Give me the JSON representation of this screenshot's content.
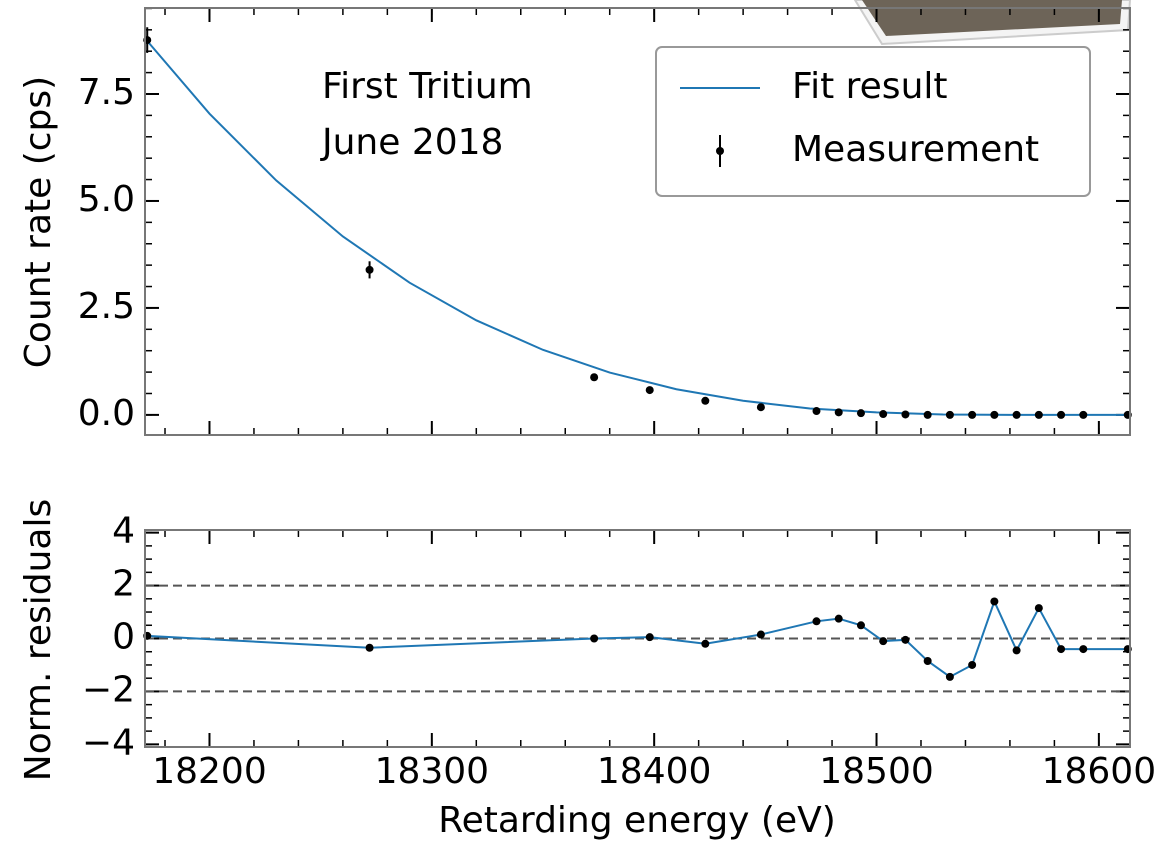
{
  "chart_data": [
    {
      "type": "line",
      "y_label": "Count rate (cps)",
      "annotations": [
        "First Tritium",
        "June 2018"
      ],
      "legend": "upper right",
      "xlim": [
        18171,
        18614
      ],
      "ylim": [
        -0.47,
        9.51
      ],
      "yticks": [
        {
          "value": 0,
          "label": "0.0"
        },
        2.5,
        {
          "value": 5,
          "label": "5.0"
        },
        7.5
      ],
      "series": [
        {
          "name": "Fit result",
          "color": "#1f77b4",
          "kind": "line",
          "x": [
            18171,
            18200,
            18230,
            18260,
            18290,
            18320,
            18350,
            18380,
            18410,
            18440,
            18470,
            18500,
            18530,
            18560,
            18614
          ],
          "values": [
            8.8,
            7.04,
            5.48,
            4.17,
            3.09,
            2.21,
            1.52,
            0.99,
            0.6,
            0.33,
            0.15,
            0.06,
            0.01,
            0,
            0
          ]
        },
        {
          "name": "Measurement",
          "color": "#000000",
          "kind": "errorbar",
          "x": [
            18172,
            18272,
            18373,
            18398,
            18423,
            18448,
            18473,
            18483,
            18493,
            18503,
            18513,
            18523,
            18533,
            18543,
            18553,
            18563,
            18573,
            18583,
            18593,
            18613
          ],
          "values": [
            8.76,
            3.39,
            0.88,
            0.58,
            0.33,
            0.18,
            0.09,
            0.06,
            0.04,
            0.02,
            0.01,
            0,
            0,
            0,
            0,
            0,
            0,
            0,
            0,
            0
          ],
          "errors": [
            0.3,
            0.2,
            0.06,
            0.05,
            0.04,
            0.04,
            0.03,
            0.03,
            0.03,
            0.03,
            0.03,
            0.03,
            0.03,
            0.03,
            0.03,
            0.03,
            0.03,
            0.03,
            0.03,
            0.03
          ]
        }
      ]
    },
    {
      "type": "line",
      "x_label": "Retarding energy (eV)",
      "y_label": "Norm. residuals",
      "xlim": [
        18171,
        18614
      ],
      "ylim": [
        -4.1,
        4.1
      ],
      "xticks": [
        18200,
        18300,
        18400,
        18500,
        18600
      ],
      "yticks": [
        {
          "value": -4,
          "label": "−4"
        },
        {
          "value": -2,
          "label": "−2"
        },
        0,
        2,
        4
      ],
      "hlines": [
        2,
        0,
        -2
      ],
      "series": [
        {
          "color": "#1f77b4",
          "x": [
            18172,
            18272,
            18373,
            18398,
            18423,
            18448,
            18473,
            18483,
            18493,
            18503,
            18513,
            18523,
            18533,
            18543,
            18553,
            18563,
            18573,
            18583,
            18593,
            18613
          ],
          "values": [
            0.1,
            -0.35,
            0,
            0.05,
            -0.2,
            0.15,
            0.65,
            0.75,
            0.5,
            -0.1,
            -0.05,
            -0.85,
            -1.45,
            -1,
            1.4,
            -0.45,
            1.15,
            -0.4,
            -0.4,
            -0.4
          ]
        }
      ]
    }
  ]
}
